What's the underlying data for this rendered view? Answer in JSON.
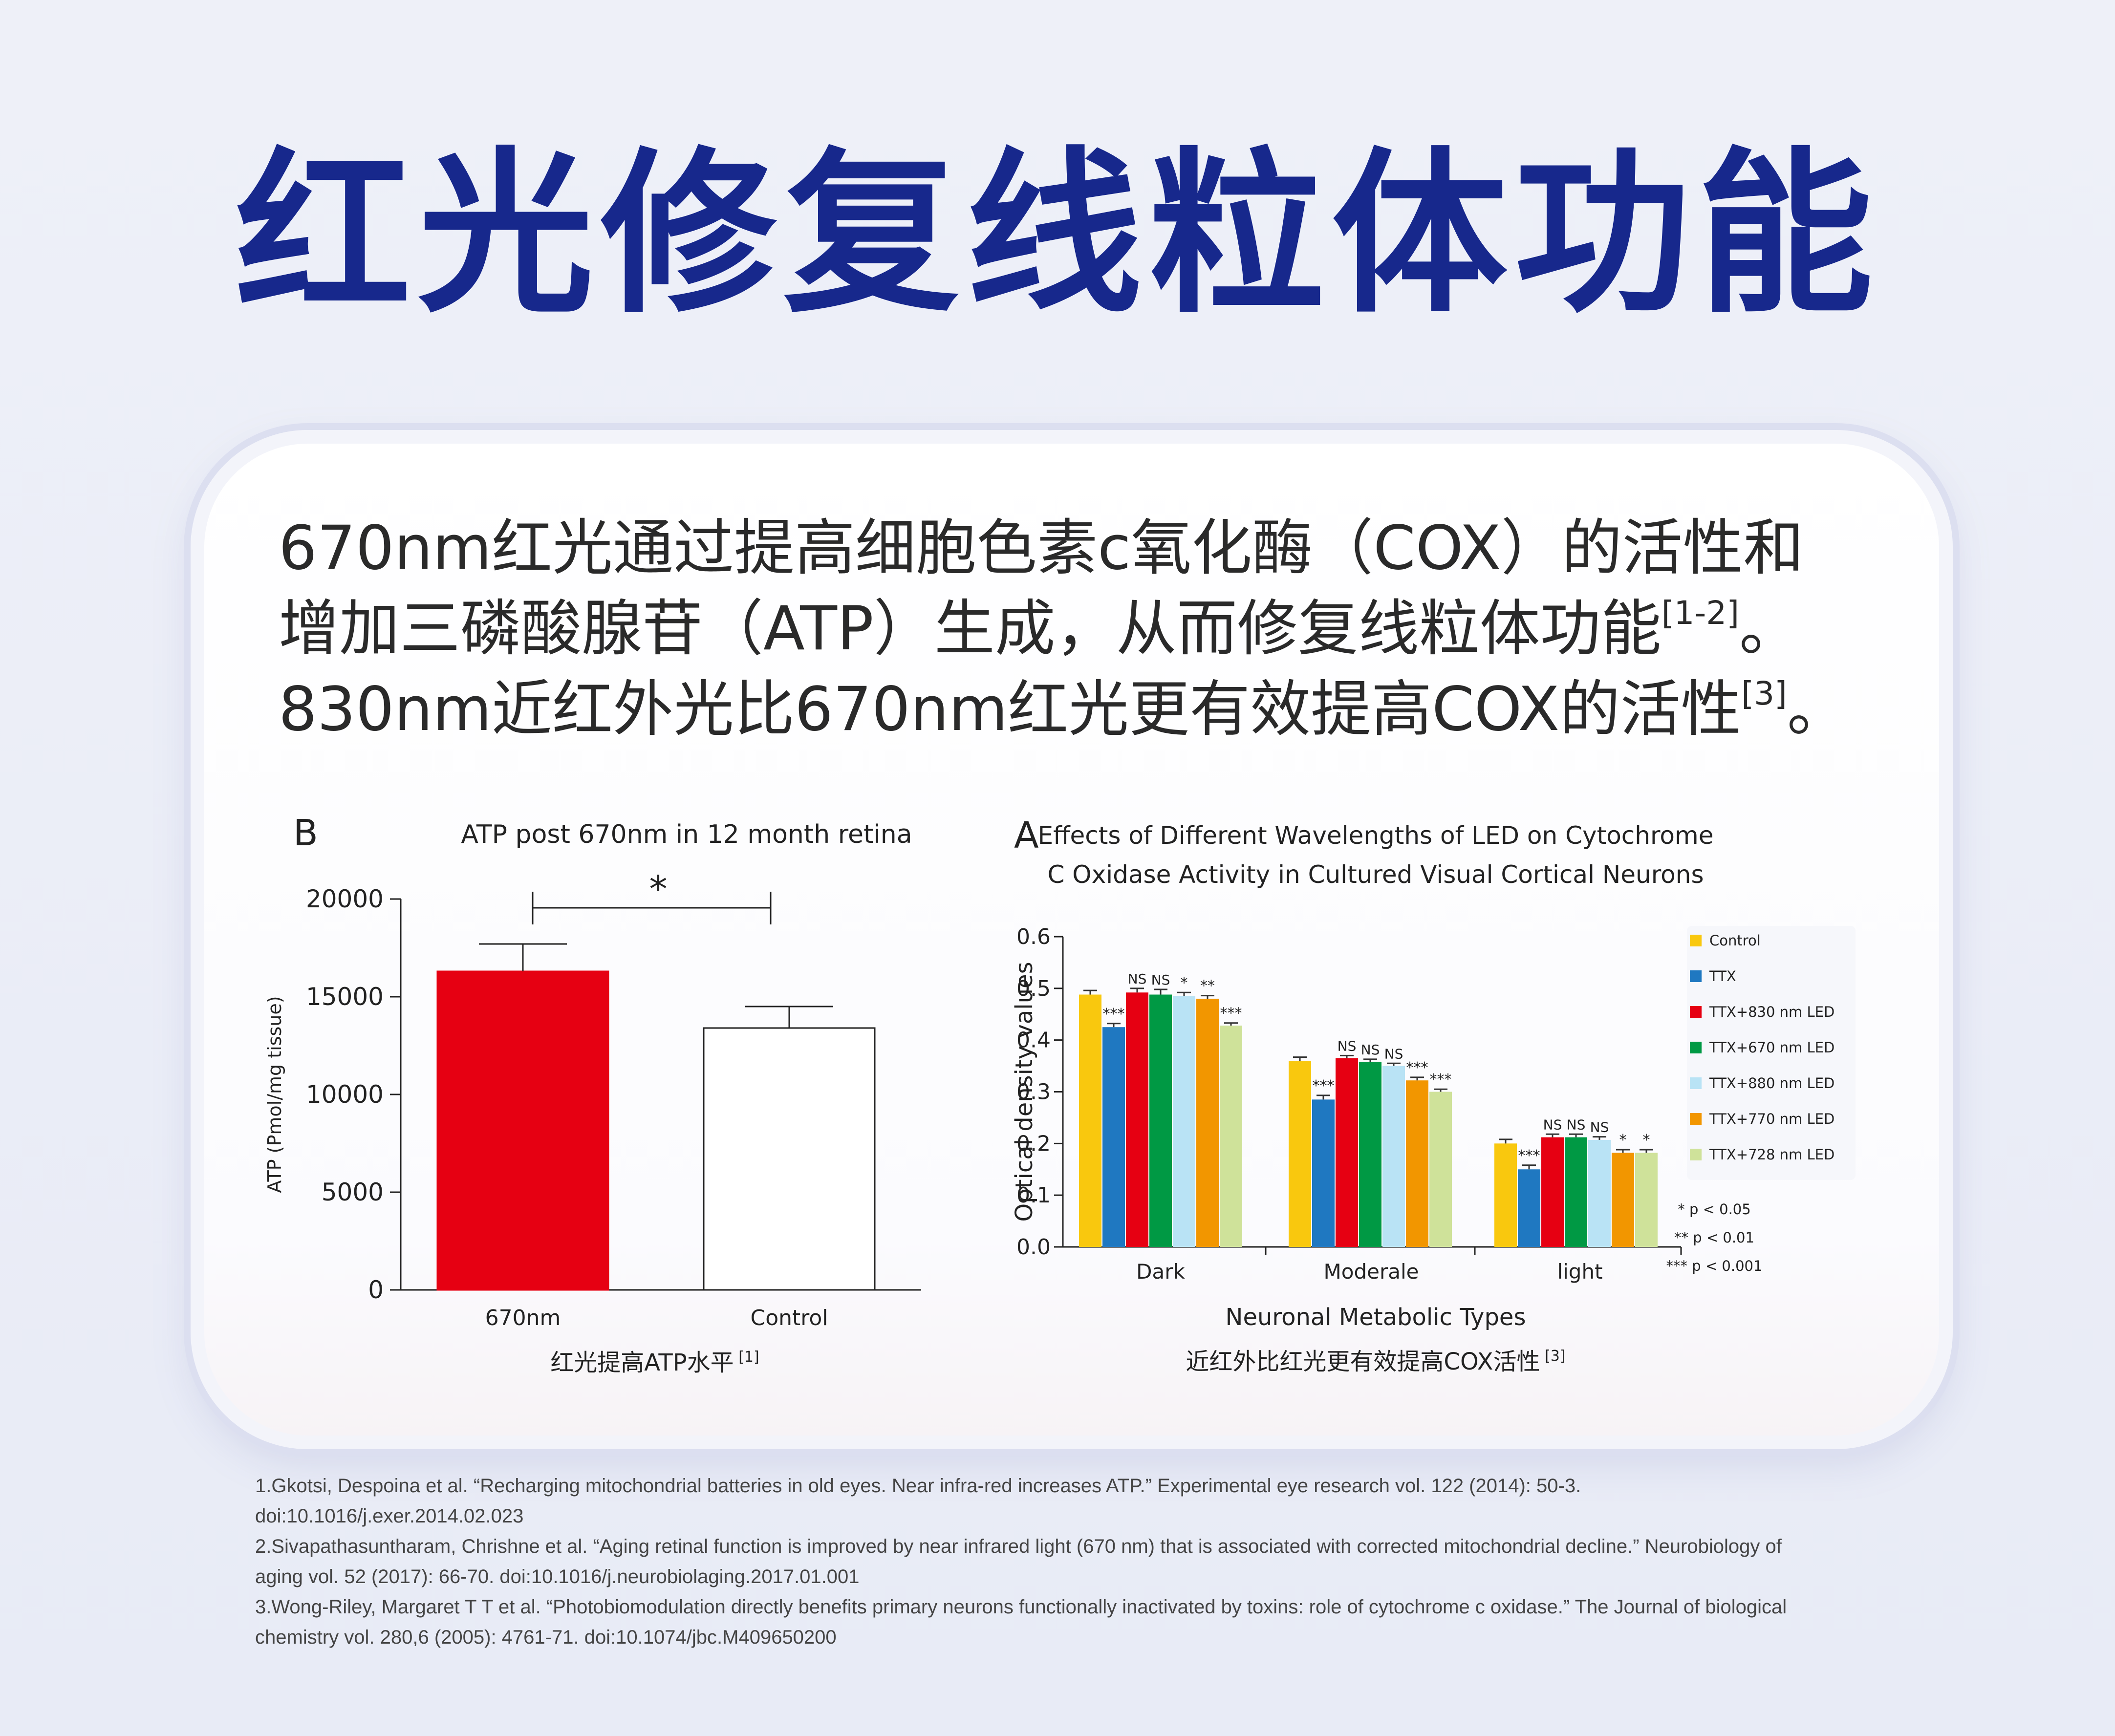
{
  "title": "红光修复线粒体功能",
  "intro": {
    "line1": "670nm红光通过提高细胞色素c氧化酶（COX）的活性和",
    "line2": "增加三磷酸腺苷（ATP）生成，从而修复线粒体功能",
    "line2_ref": "[1-2]",
    "line2_end": "。",
    "line3": "830nm近红外光比670nm红光更有效提高COX的活性",
    "line3_ref": "[3]",
    "line3_end": "。"
  },
  "colors": {
    "title": "#17288c",
    "Control": "#f9c80e",
    "TTX": "#1f78c1",
    "TTX+830 nm LED": "#e60012",
    "TTX+670 nm LED": "#009944",
    "TTX+880 nm LED": "#b9e3f5",
    "TTX+770 nm LED": "#f29600",
    "TTX+728 nm LED": "#cfe29a",
    "bar_670": "#e60012"
  },
  "chart_data": [
    {
      "type": "bar",
      "panel_letter": "B",
      "title": "ATP post 670nm in 12 month retina",
      "categories": [
        "670nm",
        "Control"
      ],
      "values": [
        16300,
        13400
      ],
      "errors": [
        1400,
        1100
      ],
      "ylabel": "ATP (Pmol/mg tissue)",
      "ylim": [
        0,
        20000
      ],
      "yticks": [
        0,
        5000,
        10000,
        15000,
        20000
      ],
      "significance": "*",
      "caption": "红光提高ATP水平",
      "caption_ref": "[1]"
    },
    {
      "type": "bar",
      "panel_letter": "A",
      "title_line1": "Effects of Different Wavelengths of LED on Cytochrome",
      "title_line2": "C Oxidase Activity in Cultured Visual Cortical Neurons",
      "categories": [
        "Dark",
        "Moderale",
        "light"
      ],
      "series": [
        {
          "name": "Control",
          "values": [
            0.488,
            0.36,
            0.2
          ],
          "errors": [
            0.008,
            0.007,
            0.008
          ],
          "sig": [
            "",
            "",
            ""
          ]
        },
        {
          "name": "TTX",
          "values": [
            0.425,
            0.285,
            0.15
          ],
          "errors": [
            0.007,
            0.008,
            0.008
          ],
          "sig": [
            "***",
            "***",
            "***"
          ]
        },
        {
          "name": "TTX+830 nm LED",
          "values": [
            0.492,
            0.365,
            0.212
          ],
          "errors": [
            0.008,
            0.005,
            0.006
          ],
          "sig": [
            "NS",
            "NS",
            "NS"
          ]
        },
        {
          "name": "TTX+670 nm LED",
          "values": [
            0.488,
            0.358,
            0.212
          ],
          "errors": [
            0.01,
            0.005,
            0.006
          ],
          "sig": [
            "NS",
            "NS",
            "NS"
          ]
        },
        {
          "name": "TTX+880 nm LED",
          "values": [
            0.485,
            0.35,
            0.207
          ],
          "errors": [
            0.007,
            0.005,
            0.006
          ],
          "sig": [
            "*",
            "NS",
            "NS"
          ]
        },
        {
          "name": "TTX+770 nm LED",
          "values": [
            0.48,
            0.322,
            0.182
          ],
          "errors": [
            0.006,
            0.006,
            0.006
          ],
          "sig": [
            "**",
            "***",
            "*"
          ]
        },
        {
          "name": "TTX+728 nm LED",
          "values": [
            0.428,
            0.3,
            0.182
          ],
          "errors": [
            0.005,
            0.005,
            0.006
          ],
          "sig": [
            "***",
            "***",
            "*"
          ]
        }
      ],
      "xlabel": "Neuronal Metabolic Types",
      "ylabel": "Optical density values",
      "ylim": [
        0,
        0.6
      ],
      "yticks": [
        "0.0",
        "0.1",
        "0.2",
        "0.3",
        "0.4",
        "0.5",
        "0.6"
      ],
      "legend_position": "right",
      "pvalue_notes": [
        "* p < 0.05",
        "** p < 0.01",
        "*** p < 0.001"
      ],
      "caption": "近红外比红光更有效提高COX活性",
      "caption_ref": "[3]"
    }
  ],
  "references": [
    "1.Gkotsi, Despoina et al. “Recharging mitochondrial batteries in old eyes. Near infra-red increases ATP.” Experimental eye research vol. 122 (2014): 50-3.",
    "doi:10.1016/j.exer.2014.02.023",
    "2.Sivapathasuntharam, Chrishne et al. “Aging retinal function is improved by near infrared light (670 nm) that is associated with corrected mitochondrial decline.” Neurobiology of",
    "aging vol. 52 (2017): 66-70. doi:10.1016/j.neurobiolaging.2017.01.001",
    "3.Wong-Riley, Margaret T T et al. “Photobiomodulation directly benefits primary neurons functionally inactivated by toxins: role of cytochrome c oxidase.” The Journal of biological",
    "chemistry vol. 280,6 (2005): 4761-71. doi:10.1074/jbc.M409650200"
  ]
}
